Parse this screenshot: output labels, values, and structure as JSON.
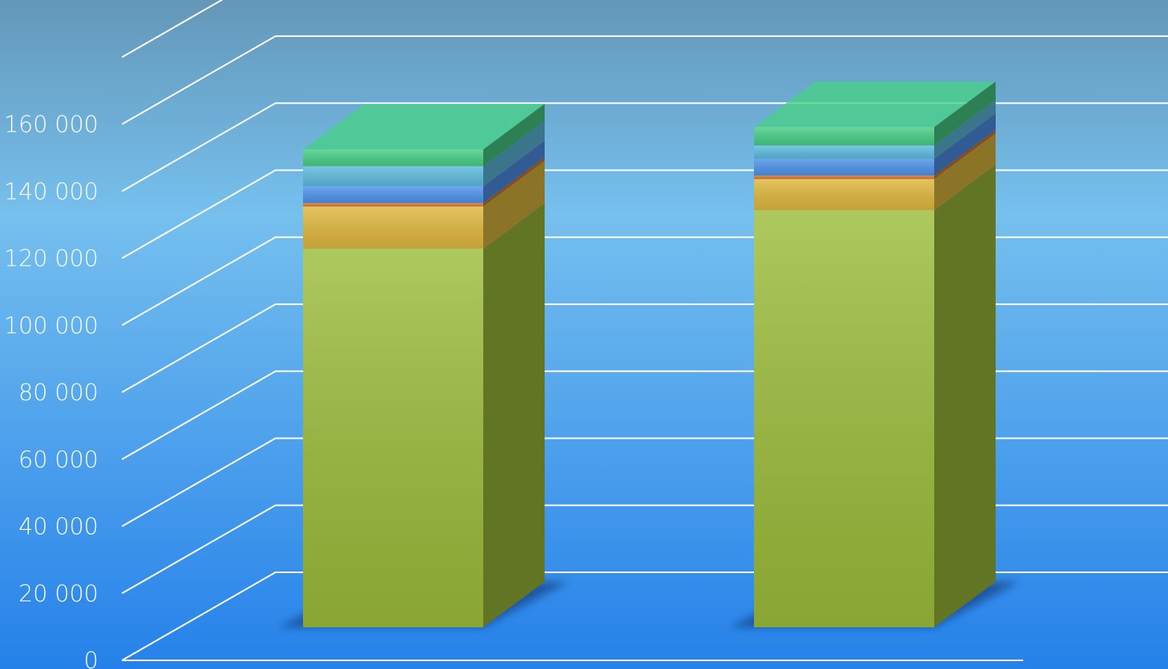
{
  "chart_data": {
    "type": "bar",
    "stacked": true,
    "view": "3d",
    "title": "",
    "xlabel": "",
    "ylabel": "",
    "ylim": [
      0,
      180000
    ],
    "grid": true,
    "legend": "none",
    "y_ticks": [
      {
        "value": 0,
        "label": "0"
      },
      {
        "value": 20000,
        "label": "20 000"
      },
      {
        "value": 40000,
        "label": "40 000"
      },
      {
        "value": 60000,
        "label": "60 000"
      },
      {
        "value": 80000,
        "label": "80 000"
      },
      {
        "value": 100000,
        "label": "100 000"
      },
      {
        "value": 120000,
        "label": "120 000"
      },
      {
        "value": 140000,
        "label": "140 000"
      },
      {
        "value": 160000,
        "label": "160 000"
      }
    ],
    "categories": [
      "",
      ""
    ],
    "series": [
      {
        "color": "#9cbd3b",
        "values": [
          113000,
          124500
        ]
      },
      {
        "color": "#e0b93f",
        "values": [
          12600,
          9300
        ]
      },
      {
        "color": "#e07a2a",
        "values": [
          1000,
          1000
        ]
      },
      {
        "color": "#4f93ec",
        "values": [
          5000,
          5000
        ]
      },
      {
        "color": "#5ebce0",
        "values": [
          6000,
          4000
        ]
      },
      {
        "color": "#48cf86",
        "values": [
          5000,
          5500
        ]
      }
    ]
  }
}
